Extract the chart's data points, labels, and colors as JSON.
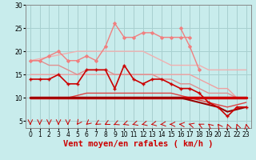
{
  "x": [
    0,
    1,
    2,
    3,
    4,
    5,
    6,
    7,
    8,
    9,
    10,
    11,
    12,
    13,
    14,
    15,
    16,
    17,
    18,
    19,
    20,
    21,
    22,
    23
  ],
  "lines": [
    {
      "y": [
        18,
        18.4,
        18.8,
        19.2,
        19.6,
        20,
        20,
        20,
        20,
        20,
        20,
        20,
        20,
        19,
        18,
        17,
        17,
        17,
        17,
        16,
        16,
        16,
        16,
        16
      ],
      "color": "#f0b0b0",
      "lw": 1.0,
      "marker": null,
      "zorder": 2
    },
    {
      "y": [
        18,
        18,
        19,
        20,
        18,
        18,
        19,
        18,
        21,
        26,
        23,
        23,
        24,
        24,
        23,
        23,
        23,
        23,
        null,
        null,
        null,
        null,
        null,
        null
      ],
      "color": "#f08080",
      "lw": 1.0,
      "marker": "D",
      "ms": 2.0,
      "zorder": 3
    },
    {
      "y": [
        null,
        null,
        null,
        null,
        null,
        null,
        null,
        null,
        null,
        null,
        null,
        null,
        null,
        null,
        null,
        null,
        25,
        21,
        16,
        null,
        null,
        null,
        null,
        null
      ],
      "color": "#f08080",
      "lw": 1.0,
      "marker": "D",
      "ms": 2.0,
      "zorder": 3
    },
    {
      "y": [
        15,
        15,
        15,
        15,
        15,
        15,
        15,
        15,
        15,
        15,
        15,
        15,
        15,
        15,
        15,
        15,
        15,
        15,
        14,
        13,
        12,
        12,
        10,
        10
      ],
      "color": "#f0a0a0",
      "lw": 1.0,
      "marker": null,
      "zorder": 2
    },
    {
      "y": [
        18,
        18,
        17,
        17,
        16,
        15,
        16,
        16,
        16,
        15,
        15,
        15,
        15,
        15,
        14,
        14,
        13,
        13,
        12,
        11,
        11,
        11,
        10,
        10
      ],
      "color": "#e09090",
      "lw": 1.0,
      "marker": null,
      "zorder": 2
    },
    {
      "y": [
        14,
        14,
        14,
        15,
        13,
        13,
        16,
        16,
        16,
        12,
        17,
        14,
        13,
        14,
        14,
        13,
        12,
        12,
        11,
        9,
        8,
        6,
        8,
        8
      ],
      "color": "#cc0000",
      "lw": 1.2,
      "marker": "+",
      "ms": 3.5,
      "mew": 1.0,
      "zorder": 5
    },
    {
      "y": [
        10,
        10,
        10,
        10,
        10,
        10,
        10,
        10,
        10,
        10,
        10,
        10,
        10,
        10,
        10,
        10,
        10,
        10,
        10,
        10,
        10,
        10,
        10,
        10
      ],
      "color": "#cc0000",
      "lw": 2.5,
      "marker": null,
      "zorder": 4
    },
    {
      "y": [
        10,
        10,
        10,
        10,
        10,
        10,
        10,
        10,
        10,
        10,
        10,
        10,
        10,
        10,
        10,
        10,
        10,
        9.5,
        9,
        8.5,
        8,
        7,
        7.5,
        8
      ],
      "color": "#990000",
      "lw": 1.5,
      "marker": null,
      "zorder": 4
    },
    {
      "y": [
        10,
        10,
        10,
        10,
        10,
        10.5,
        11,
        11,
        11,
        11,
        11,
        11,
        11,
        11,
        11,
        11,
        10.5,
        10,
        9.5,
        9,
        8.5,
        8,
        8.5,
        9
      ],
      "color": "#dd4444",
      "lw": 1.0,
      "marker": null,
      "zorder": 3
    }
  ],
  "arrows": {
    "x_positions": [
      0,
      1,
      2,
      3,
      4,
      5,
      6,
      7,
      8,
      9,
      10,
      11,
      12,
      13,
      14,
      15,
      16,
      17,
      18,
      19,
      20,
      21,
      22,
      23
    ],
    "angles_deg": [
      180,
      180,
      180,
      180,
      180,
      200,
      210,
      220,
      225,
      230,
      235,
      240,
      245,
      250,
      260,
      270,
      280,
      300,
      315,
      330,
      340,
      350,
      350,
      355
    ],
    "color": "#cc0000"
  },
  "xlim": [
    -0.5,
    23.5
  ],
  "ylim": [
    3.5,
    30
  ],
  "yticks": [
    5,
    10,
    15,
    20,
    25,
    30
  ],
  "xtick_labels": [
    "0",
    "1",
    "2",
    "3",
    "4",
    "5",
    "6",
    "7",
    "8",
    "9",
    "10",
    "11",
    "12",
    "13",
    "14",
    "15",
    "16",
    "17",
    "18",
    "19",
    "20",
    "21",
    "22",
    "23"
  ],
  "xlabel": "Vent moyen/en rafales ( km/h )",
  "bg_color": "#c8ecec",
  "grid_color": "#a8d0d0",
  "tick_fontsize": 5.5,
  "xlabel_fontsize": 7.5
}
